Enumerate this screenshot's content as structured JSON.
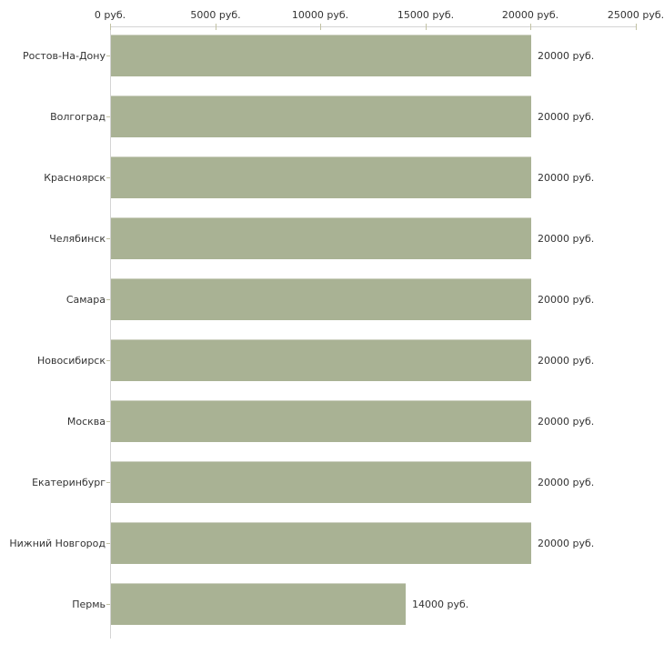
{
  "chart_data": {
    "type": "bar",
    "orientation": "horizontal",
    "title": "",
    "xlabel": "",
    "ylabel": "",
    "categories": [
      "Ростов-На-Дону",
      "Волгоград",
      "Красноярск",
      "Челябинск",
      "Самара",
      "Новосибирск",
      "Москва",
      "Екатеринбург",
      "Нижний Новгород",
      "Пермь"
    ],
    "values": [
      20000,
      20000,
      20000,
      20000,
      20000,
      20000,
      20000,
      20000,
      20000,
      14000
    ],
    "value_labels": [
      "20000 руб.",
      "20000 руб.",
      "20000 руб.",
      "20000 руб.",
      "20000 руб.",
      "20000 руб.",
      "20000 руб.",
      "20000 руб.",
      "20000 руб.",
      "14000 руб."
    ],
    "x_axis": {
      "position": "top",
      "min": 0,
      "max": 25000,
      "ticks": [
        0,
        5000,
        10000,
        15000,
        20000,
        25000
      ],
      "tick_labels": [
        "0 руб.",
        "5000 руб.",
        "10000 руб.",
        "15000 руб.",
        "20000 руб.",
        "25000 руб."
      ]
    },
    "grid": false,
    "legend": false,
    "colors": {
      "bar_fill": "#a9b294",
      "axis_line": "#d4d4d4",
      "tick_mark": "#c2c2a4",
      "text": "#333333",
      "background": "#ffffff"
    }
  }
}
